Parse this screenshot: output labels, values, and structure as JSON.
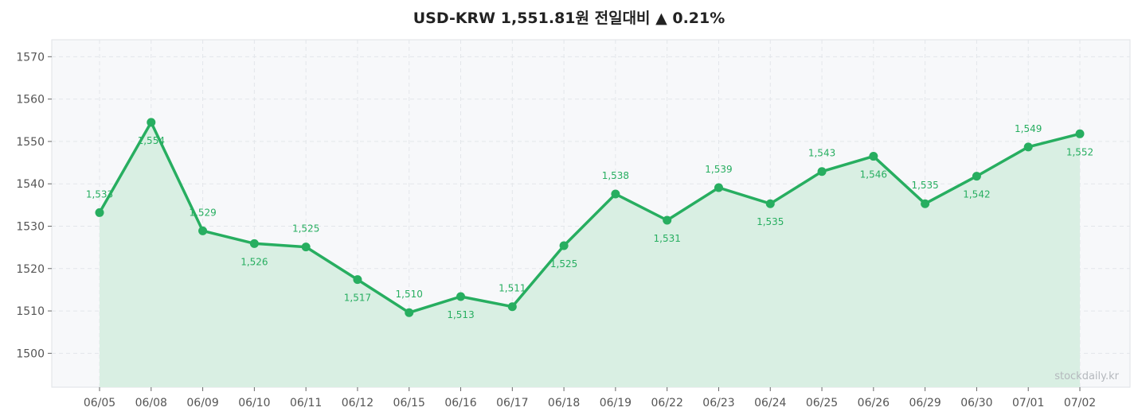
{
  "chart_data": {
    "type": "line",
    "title": "USD-KRW  1,551.81원  전일대비 ▲ 0.21%",
    "categories": [
      "06/05",
      "06/08",
      "06/09",
      "06/10",
      "06/11",
      "06/12",
      "06/15",
      "06/16",
      "06/17",
      "06/18",
      "06/19",
      "06/22",
      "06/23",
      "06/24",
      "06/25",
      "06/26",
      "06/29",
      "06/30",
      "07/01",
      "07/02"
    ],
    "series": [
      {
        "values": [
          1533.2,
          1554.5,
          1528.9,
          1525.9,
          1525.1,
          1517.4,
          1509.6,
          1513.4,
          1511.0,
          1525.4,
          1537.6,
          1531.4,
          1539.1,
          1535.3,
          1542.9,
          1546.5,
          1535.3,
          1541.8,
          1548.7,
          1551.8
        ],
        "labels": [
          "1,533",
          "1,554",
          "1,529",
          "1,526",
          "1,525",
          "1,517",
          "1,510",
          "1,513",
          "1,511",
          "1,525",
          "1,538",
          "1,531",
          "1,539",
          "1,535",
          "1,543",
          "1,546",
          "1,535",
          "1,542",
          "1,549",
          "1,552"
        ],
        "color": "#27ae60"
      }
    ],
    "yticks": [
      1500,
      1510,
      1520,
      1530,
      1540,
      1550,
      1560,
      1570
    ],
    "ylim": [
      1492,
      1574
    ],
    "grid": true,
    "fill": "area",
    "watermark": "stockdaily.kr"
  },
  "colors": {
    "line": "#27ae60",
    "fill": "#d9efe3",
    "plot_bg": "#f7f8fa",
    "grid": "#e3e6ea"
  }
}
